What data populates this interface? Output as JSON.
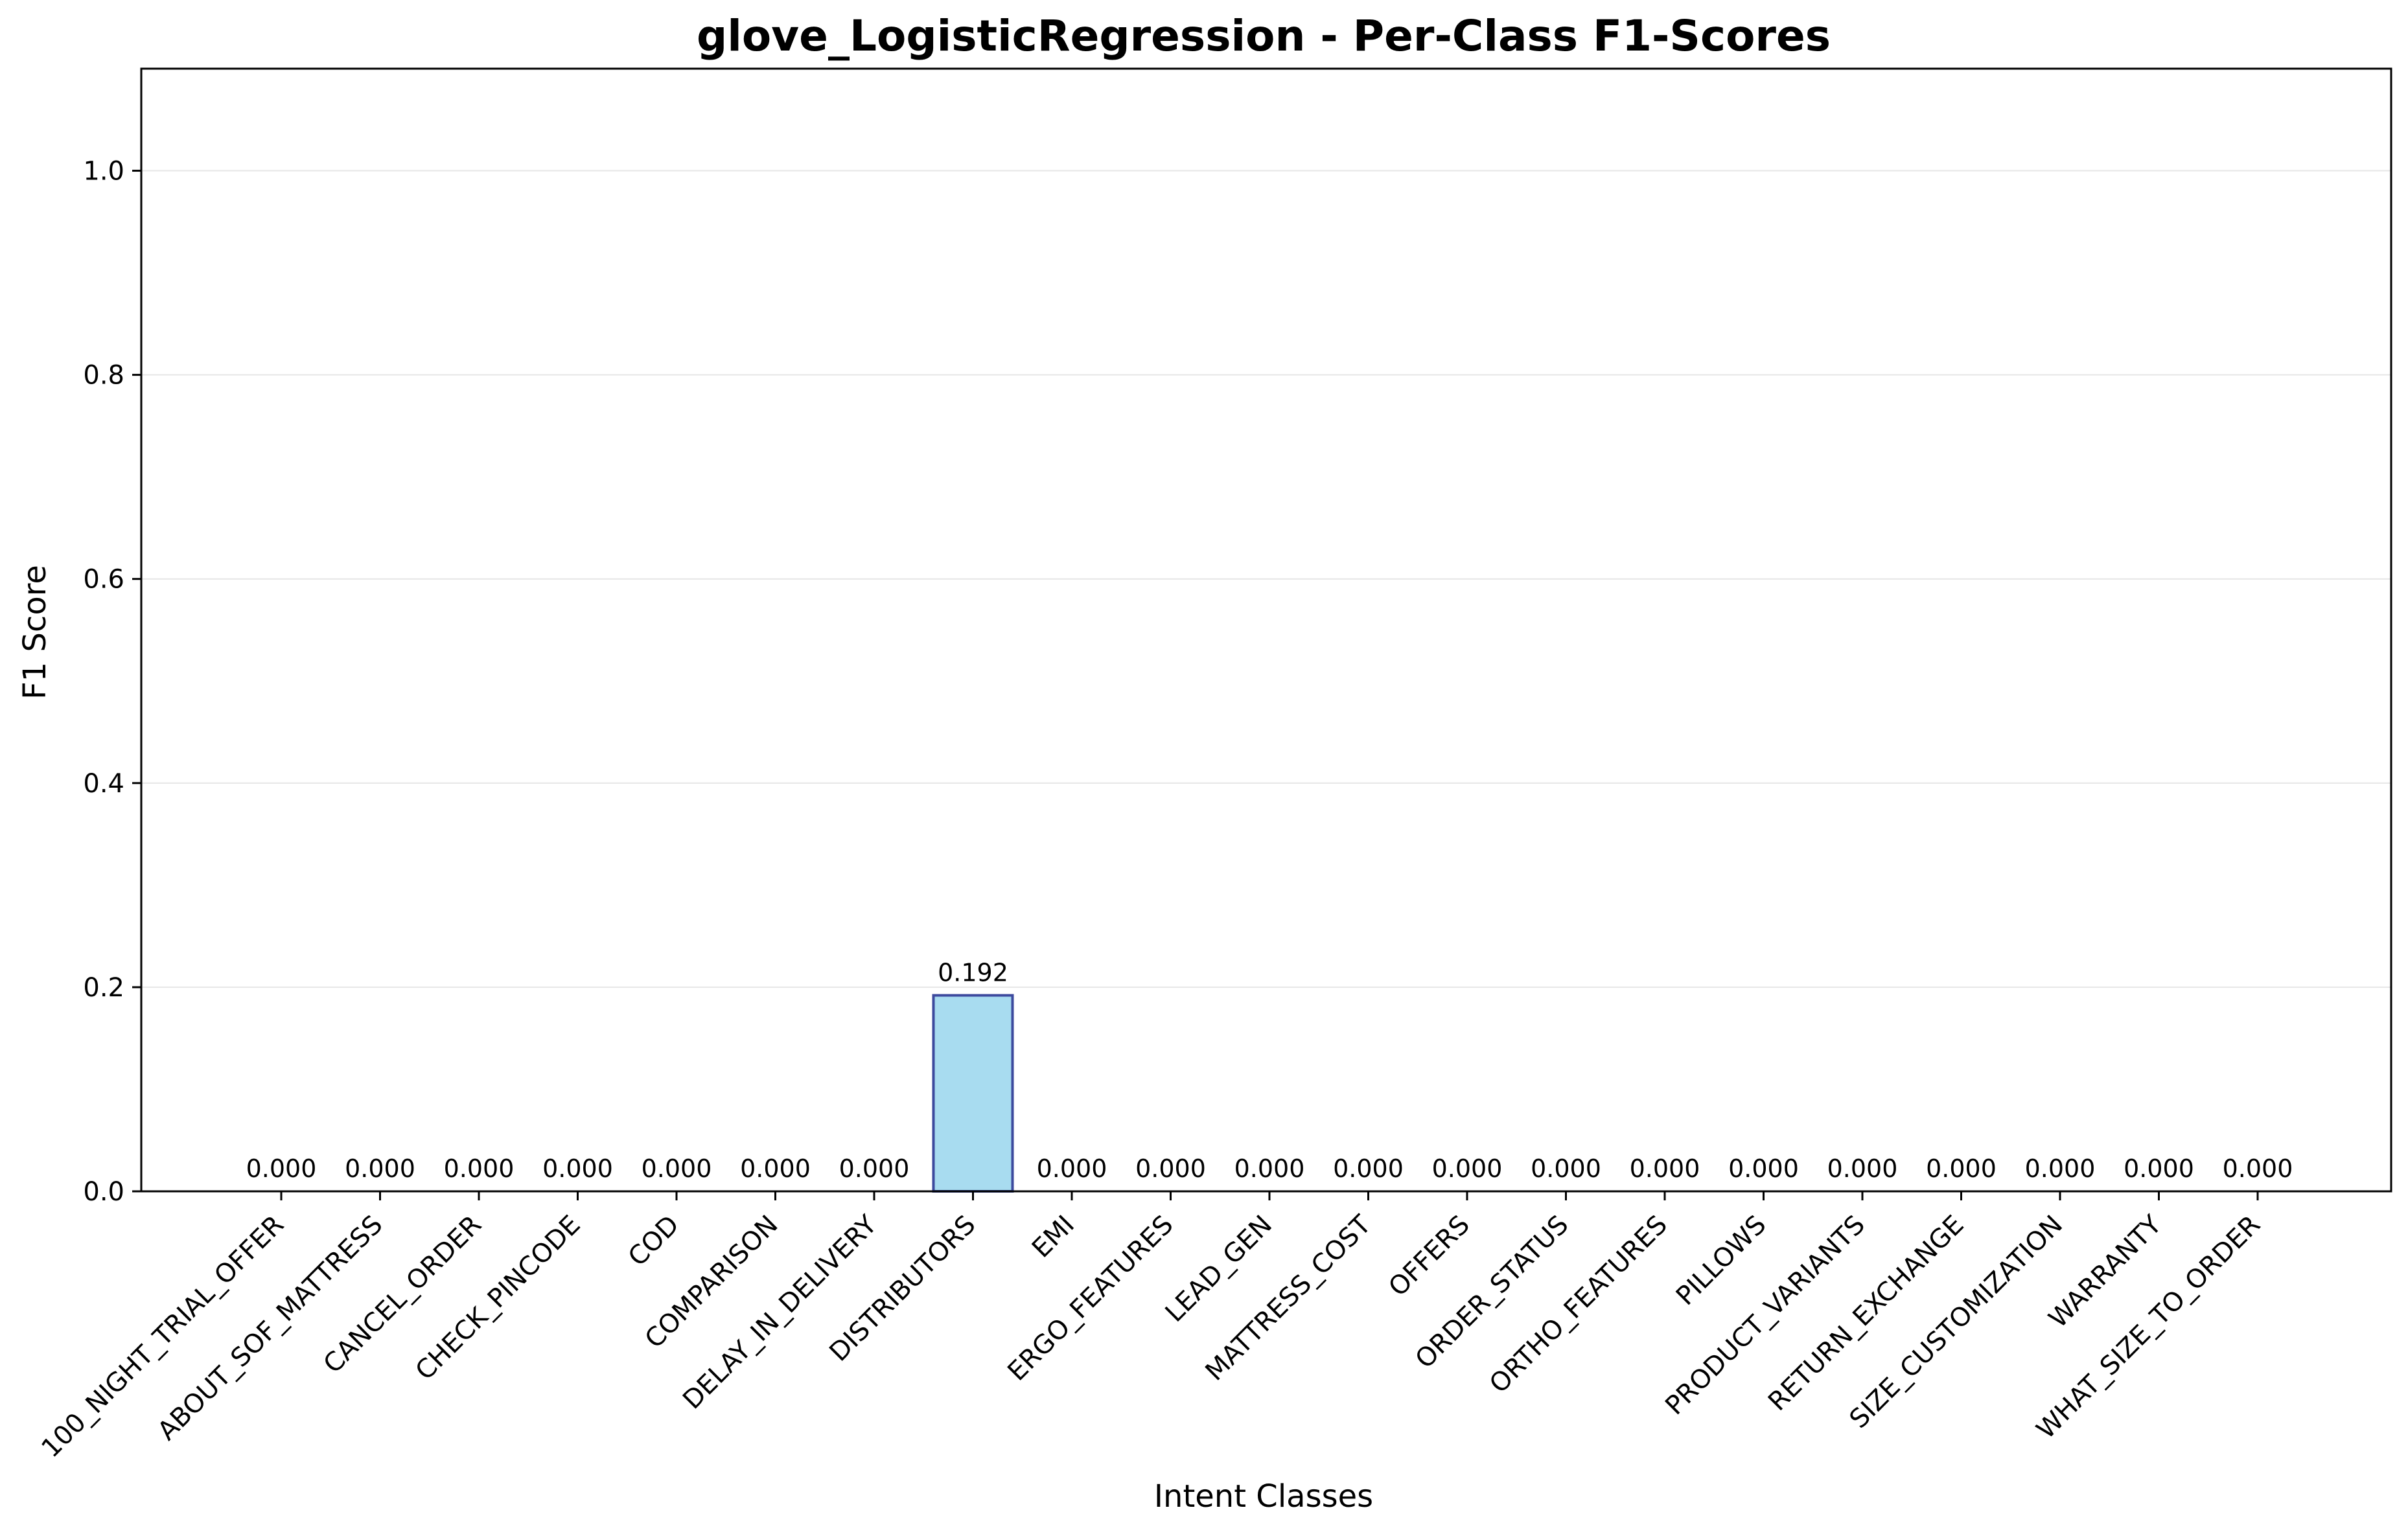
{
  "chart_data": {
    "type": "bar",
    "title": "glove_LogisticRegression - Per-Class F1-Scores",
    "xlabel": "Intent Classes",
    "ylabel": "F1 Score",
    "ylim": [
      0,
      1.1
    ],
    "yticks": [
      0.0,
      0.2,
      0.4,
      0.6,
      0.8,
      1.0
    ],
    "grid": "horizontal",
    "categories": [
      "100_NIGHT_TRIAL_OFFER",
      "ABOUT_SOF_MATTRESS",
      "CANCEL_ORDER",
      "CHECK_PINCODE",
      "COD",
      "COMPARISON",
      "DELAY_IN_DELIVERY",
      "DISTRIBUTORS",
      "EMI",
      "ERGO_FEATURES",
      "LEAD_GEN",
      "MATTRESS_COST",
      "OFFERS",
      "ORDER_STATUS",
      "ORTHO_FEATURES",
      "PILLOWS",
      "PRODUCT_VARIANTS",
      "RETURN_EXCHANGE",
      "SIZE_CUSTOMIZATION",
      "WARRANTY",
      "WHAT_SIZE_TO_ORDER"
    ],
    "values": [
      0.0,
      0.0,
      0.0,
      0.0,
      0.0,
      0.0,
      0.0,
      0.192,
      0.0,
      0.0,
      0.0,
      0.0,
      0.0,
      0.0,
      0.0,
      0.0,
      0.0,
      0.0,
      0.0,
      0.0,
      0.0
    ],
    "data_labels": [
      "0.000",
      "0.000",
      "0.000",
      "0.000",
      "0.000",
      "0.000",
      "0.000",
      "0.192",
      "0.000",
      "0.000",
      "0.000",
      "0.000",
      "0.000",
      "0.000",
      "0.000",
      "0.000",
      "0.000",
      "0.000",
      "0.000",
      "0.000",
      "0.000"
    ],
    "colors": {
      "bar_fill": "#a8dcf0",
      "bar_edge": "#3d4a9e",
      "grid": "#e6e6e6"
    }
  }
}
